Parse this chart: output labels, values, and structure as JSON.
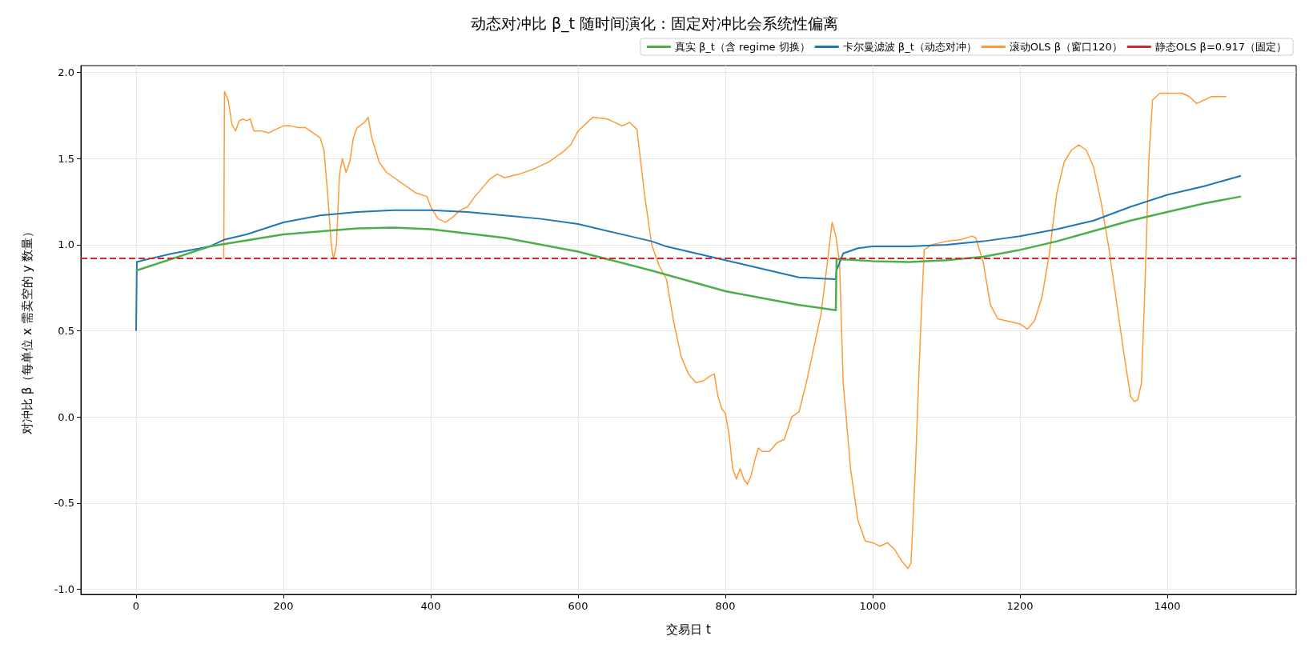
{
  "chart_data": {
    "type": "line",
    "title": "动态对冲比 β_t 随时间演化：固定对冲比会系统性偏离",
    "xlabel": "交易日 t",
    "ylabel": "对冲比 β（每单位 x 需卖空的 y 数量）",
    "xlim": [
      -75,
      1575
    ],
    "xticks": [
      0,
      200,
      400,
      600,
      800,
      1000,
      1200,
      1400
    ],
    "ylim": [
      -1.03,
      2.04
    ],
    "yticks": [
      {
        "value": -1,
        "label": "-1.0"
      },
      -0.5,
      {
        "value": 0,
        "label": "0.0"
      },
      0.5,
      {
        "value": 1,
        "label": "1.0"
      },
      1.5,
      {
        "value": 2,
        "label": "2.0"
      }
    ],
    "grid": true,
    "legend": "top right",
    "marker": "none",
    "series": [
      {
        "name": "真实 β_t（含 regime 切换）",
        "color": "#4daf4a",
        "x": [
          0,
          100,
          200,
          300,
          350,
          400,
          500,
          600,
          700,
          800,
          900,
          950,
          951,
          1000,
          1050,
          1100,
          1150,
          1200,
          1250,
          1300,
          1350,
          1400,
          1450,
          1500
        ],
        "values": [
          0.85,
          0.99,
          1.06,
          1.095,
          1.1,
          1.09,
          1.04,
          0.96,
          0.85,
          0.73,
          0.65,
          0.62,
          0.917,
          0.905,
          0.9,
          0.91,
          0.93,
          0.97,
          1.02,
          1.08,
          1.14,
          1.19,
          1.24,
          1.28
        ]
      },
      {
        "name": "卡尔曼滤波 β_t（动态对冲）",
        "color": "#1f77b4",
        "x": [
          0,
          1,
          10,
          20,
          50,
          100,
          120,
          150,
          200,
          250,
          300,
          350,
          400,
          450,
          500,
          550,
          600,
          650,
          700,
          720,
          750,
          800,
          850,
          900,
          950,
          951,
          960,
          980,
          1000,
          1050,
          1100,
          1150,
          1200,
          1250,
          1300,
          1350,
          1400,
          1450,
          1500
        ],
        "values": [
          0.5,
          0.9,
          0.91,
          0.92,
          0.95,
          0.99,
          1.03,
          1.06,
          1.13,
          1.17,
          1.19,
          1.2,
          1.2,
          1.19,
          1.17,
          1.15,
          1.12,
          1.07,
          1.02,
          0.99,
          0.96,
          0.91,
          0.86,
          0.81,
          0.8,
          0.85,
          0.95,
          0.98,
          0.99,
          0.99,
          1,
          1.02,
          1.05,
          1.09,
          1.14,
          1.22,
          1.29,
          1.34,
          1.4
        ]
      },
      {
        "name": "滚动OLS β（窗口120）",
        "color": "#ff9933",
        "x": [
          119,
          120,
          125,
          130,
          135,
          140,
          145,
          150,
          155,
          160,
          170,
          180,
          190,
          200,
          210,
          220,
          230,
          240,
          250,
          255,
          260,
          265,
          268,
          272,
          276,
          280,
          285,
          290,
          295,
          300,
          310,
          315,
          320,
          330,
          340,
          360,
          380,
          395,
          400,
          410,
          420,
          430,
          440,
          450,
          460,
          470,
          480,
          490,
          500,
          520,
          540,
          560,
          580,
          590,
          600,
          620,
          640,
          660,
          670,
          680,
          690,
          700,
          710,
          720,
          730,
          740,
          750,
          760,
          770,
          780,
          785,
          790,
          795,
          800,
          805,
          810,
          815,
          820,
          825,
          830,
          835,
          840,
          845,
          850,
          860,
          870,
          880,
          890,
          900,
          910,
          920,
          930,
          940,
          945,
          950,
          955,
          960,
          970,
          980,
          990,
          1000,
          1010,
          1020,
          1030,
          1040,
          1048,
          1052,
          1058,
          1065,
          1070,
          1080,
          1100,
          1120,
          1135,
          1140,
          1150,
          1160,
          1170,
          1180,
          1190,
          1200,
          1210,
          1220,
          1230,
          1240,
          1250,
          1260,
          1270,
          1280,
          1290,
          1300,
          1310,
          1320,
          1330,
          1340,
          1350,
          1355,
          1360,
          1365,
          1370,
          1375,
          1380,
          1390,
          1400,
          1420,
          1430,
          1440,
          1460,
          1480
        ],
        "values": [
          0.92,
          1.89,
          1.84,
          1.7,
          1.66,
          1.72,
          1.73,
          1.72,
          1.73,
          1.66,
          1.66,
          1.65,
          1.67,
          1.69,
          1.69,
          1.68,
          1.68,
          1.65,
          1.62,
          1.55,
          1.3,
          1,
          0.917,
          1,
          1.4,
          1.5,
          1.42,
          1.48,
          1.62,
          1.68,
          1.71,
          1.74,
          1.62,
          1.48,
          1.42,
          1.36,
          1.3,
          1.28,
          1.22,
          1.15,
          1.13,
          1.16,
          1.2,
          1.22,
          1.28,
          1.33,
          1.38,
          1.41,
          1.39,
          1.41,
          1.44,
          1.48,
          1.54,
          1.58,
          1.66,
          1.74,
          1.73,
          1.69,
          1.71,
          1.67,
          1.3,
          1,
          0.88,
          0.8,
          0.55,
          0.35,
          0.25,
          0.2,
          0.21,
          0.24,
          0.25,
          0.12,
          0.05,
          0.02,
          -0.1,
          -0.3,
          -0.36,
          -0.3,
          -0.36,
          -0.39,
          -0.34,
          -0.25,
          -0.18,
          -0.2,
          -0.2,
          -0.15,
          -0.13,
          0,
          0.03,
          0.2,
          0.4,
          0.6,
          0.95,
          1.13,
          1.05,
          0.9,
          0.2,
          -0.3,
          -0.6,
          -0.72,
          -0.73,
          -0.75,
          -0.73,
          -0.77,
          -0.84,
          -0.88,
          -0.85,
          -0.3,
          0.5,
          0.97,
          1,
          1.02,
          1.03,
          1.05,
          1.04,
          0.9,
          0.65,
          0.57,
          0.56,
          0.55,
          0.54,
          0.51,
          0.56,
          0.7,
          0.95,
          1.3,
          1.48,
          1.55,
          1.58,
          1.55,
          1.45,
          1.25,
          1,
          0.7,
          0.4,
          0.12,
          0.09,
          0.1,
          0.2,
          0.8,
          1.5,
          1.84,
          1.88,
          1.88,
          1.88,
          1.86,
          1.82,
          1.86,
          1.86
        ]
      }
    ],
    "ref_lines": [
      {
        "axis": "y",
        "value": 0.917,
        "label": "静态OLS β=0.917（固定）",
        "color": "#d62728",
        "line_style": "dashed"
      }
    ]
  }
}
